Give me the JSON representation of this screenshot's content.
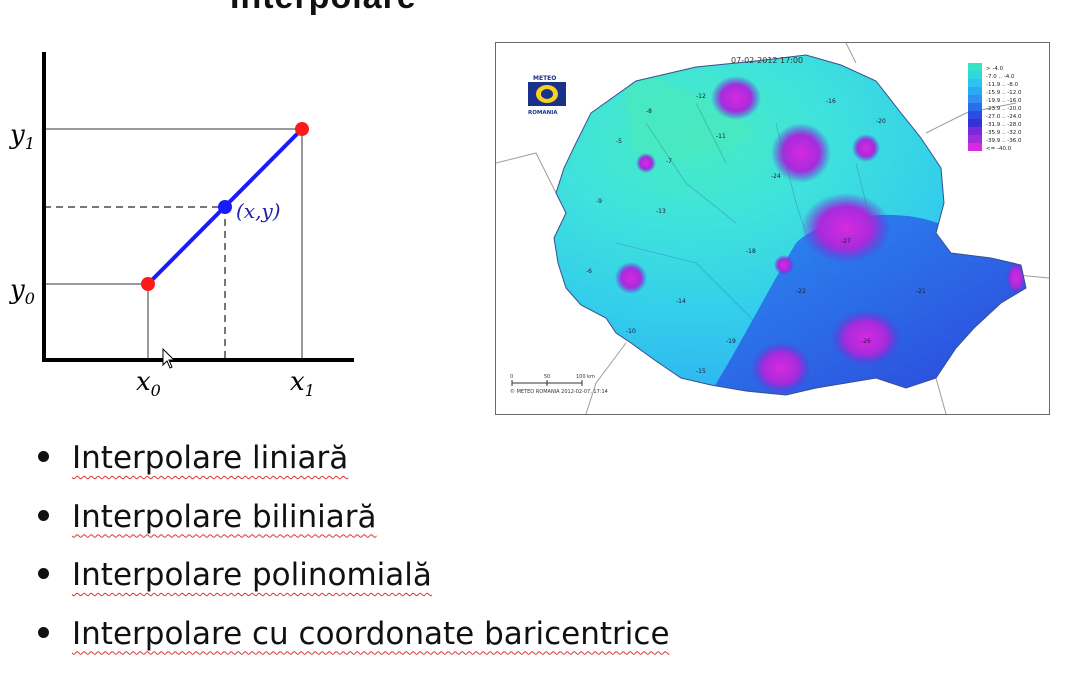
{
  "slide": {
    "title_partial": "Interpolare"
  },
  "diagram": {
    "labels": {
      "y1": "y",
      "y1_sub": "1",
      "y0": "y",
      "y0_sub": "0",
      "x0": "x",
      "x0_sub": "0",
      "x1": "x",
      "x1_sub": "1",
      "point": "(x,y)"
    },
    "colors": {
      "line": "#1a1aff",
      "endpoint": "#ff1a1a",
      "midpoint": "#1a1aff",
      "label": "#2222aa"
    }
  },
  "map": {
    "timestamp": "07-02-2012 17:00",
    "logo_top": "METEO",
    "logo_bottom": "ROMANIA",
    "legend": [
      "> -4.0",
      "-7.0 .. -4.0",
      "-11.9 .. -8.0",
      "-15.9 .. -12.0",
      "-19.9 .. -16.0",
      "-23.9 .. -20.0",
      "-27.0 .. -24.0",
      "-31.9 .. -28.0",
      "-35.9 .. -32.0",
      "-39.9 .. -36.0",
      "<= -40.0"
    ],
    "legend_colors": [
      "#36e3c5",
      "#33d6e0",
      "#2fc3f0",
      "#2aa9f5",
      "#2f8ff2",
      "#2b6fe8",
      "#2a4fe0",
      "#3a2fd6",
      "#7a2ad8",
      "#a32bdc",
      "#d62be0"
    ],
    "scale": {
      "0": "0",
      "50": "50",
      "100": "100 km"
    },
    "footer": "© METEO ROMANIA 2012-02-07, 17:14",
    "readings": [
      {
        "t": "-8"
      },
      {
        "t": "-12"
      },
      {
        "t": "-5"
      },
      {
        "t": "-7"
      },
      {
        "t": "-11"
      },
      {
        "t": "-24"
      },
      {
        "t": "-16"
      },
      {
        "t": "-20"
      },
      {
        "t": "-9"
      },
      {
        "t": "-13"
      },
      {
        "t": "-27"
      },
      {
        "t": "-18"
      },
      {
        "t": "-22"
      },
      {
        "t": "-6"
      },
      {
        "t": "-14"
      },
      {
        "t": "-10"
      },
      {
        "t": "-19"
      },
      {
        "t": "-26"
      },
      {
        "t": "-21"
      },
      {
        "t": "-15"
      }
    ]
  },
  "bullets": [
    {
      "text": "Interpolare liniară"
    },
    {
      "text": "Interpolare biliniară"
    },
    {
      "text": "Interpolare polinomială"
    },
    {
      "text": "Interpolare cu coordonate baricentrice"
    }
  ]
}
